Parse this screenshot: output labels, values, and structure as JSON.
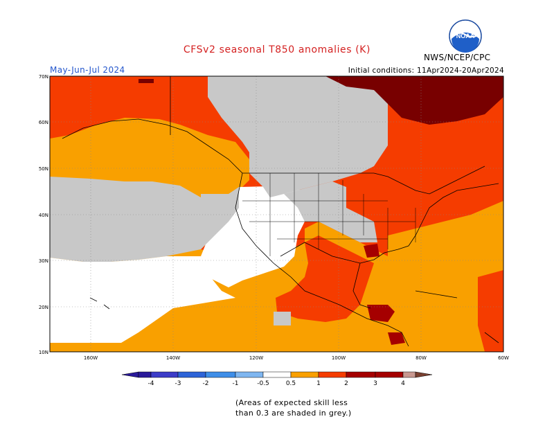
{
  "header": {
    "title": "CFSv2 seasonal T850 anomalies (K)",
    "season": "May-Jun-Jul 2024",
    "initial_conditions": "Initial conditions: 11Apr2024-20Apr2024",
    "agency": "NWS/NCEP/CPC",
    "logo_text": "NOAA"
  },
  "map": {
    "lat_labels": [
      "70N",
      "60N",
      "50N",
      "40N",
      "30N",
      "20N",
      "10N"
    ],
    "lon_labels": [
      "160W",
      "140W",
      "120W",
      "100W",
      "80W",
      "60W"
    ],
    "colors": {
      "grey": "#c8c8c8",
      "orange": "#f9a000",
      "red_orange": "#f53c00",
      "dark_red": "#a50000",
      "maroon": "#780000",
      "white": "#ffffff"
    }
  },
  "legend": {
    "ticks": [
      "-4",
      "-3",
      "-2",
      "-1",
      "-0.5",
      "0.5",
      "1",
      "2",
      "3",
      "4"
    ],
    "colors": [
      "#2a1a9a",
      "#3c3cc8",
      "#2e64d8",
      "#3e8ee8",
      "#7fb6f0",
      "#ffffff",
      "#f9a000",
      "#f53c00",
      "#a50000",
      "#a50000",
      "#c89890",
      "#7a4030"
    ]
  },
  "footnote": {
    "line1": "(Areas of expected skill less",
    "line2": "than 0.3 are shaded in grey.)"
  }
}
